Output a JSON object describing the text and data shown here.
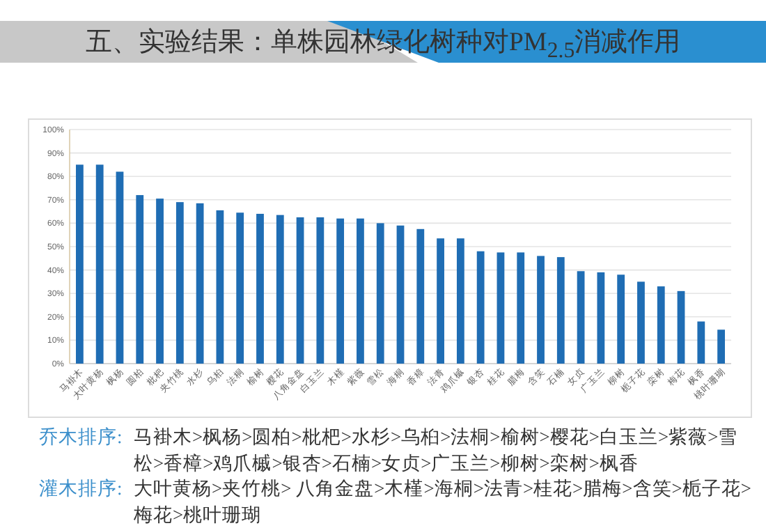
{
  "chart_data": {
    "type": "bar",
    "title": "五、实验结果：单株园林绿化树种对PM$_{2.5}$消减作用",
    "categories": [
      "马褂木",
      "大叶黄杨",
      "枫杨",
      "圆柏",
      "枇杷",
      "夹竹桃",
      "水杉",
      "乌桕",
      "法桐",
      "榆树",
      "樱花",
      "八角金盘",
      "白玉兰",
      "木槿",
      "紫薇",
      "雪松",
      "海桐",
      "香樟",
      "法青",
      "鸡爪槭",
      "银杏",
      "桂花",
      "腊梅",
      "含笑",
      "石楠",
      "女贞",
      "广玉兰",
      "柳树",
      "栀子花",
      "栾树",
      "梅花",
      "枫香",
      "桃叶珊瑚"
    ],
    "values": [
      85,
      85,
      82,
      72,
      70.5,
      69,
      68.5,
      65.5,
      64.5,
      64,
      63.5,
      62.5,
      62.5,
      62,
      62,
      60,
      59,
      57.5,
      53.5,
      53.5,
      48,
      47.5,
      47.5,
      46,
      45.5,
      39.5,
      39,
      38,
      35,
      33,
      31,
      18,
      14.5
    ],
    "color": "#1f6db4",
    "ylim": [
      0,
      100
    ],
    "yticks": [
      {
        "value": 0,
        "label": "0%"
      },
      {
        "value": 10,
        "label": "10%"
      },
      {
        "value": 20,
        "label": "20%"
      },
      {
        "value": 30,
        "label": "30%"
      },
      {
        "value": 40,
        "label": "40%"
      },
      {
        "value": 50,
        "label": "50%"
      },
      {
        "value": 60,
        "label": "60%"
      },
      {
        "value": 70,
        "label": "70%"
      },
      {
        "value": 80,
        "label": "80%"
      },
      {
        "value": 90,
        "label": "90%"
      },
      {
        "value": 100,
        "label": "100%"
      }
    ],
    "grid": "y",
    "annotations": [
      "乔木排序:",
      "马褂木>枫杨>圆柏>枇杷>水杉>乌桕>法桐>榆树>樱花>白玉兰>紫薇>雪松>香樟>鸡爪槭>银杏>石楠>女贞>广玉兰>柳树>栾树>枫香",
      "灌木排序:",
      "大叶黄杨>夹竹桃> 八角金盘>木槿>海桐>法青>桂花>腊梅>含笑>栀子花>梅花>桃叶珊瑚"
    ]
  }
}
